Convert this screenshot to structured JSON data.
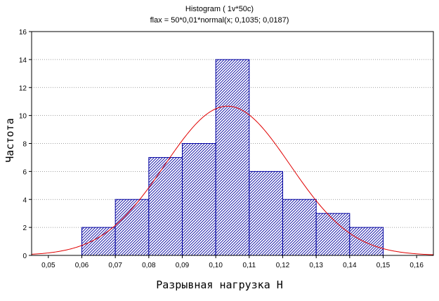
{
  "chart_data": {
    "type": "bar",
    "title": "Histogram ( 1v*50c)",
    "subtitle": "flax = 50*0,01*normal(x; 0,1035; 0,0187)",
    "xlabel": "Разрывная нагрузка Н",
    "ylabel": "Частота",
    "xlim": [
      0.045,
      0.165
    ],
    "ylim": [
      0,
      16
    ],
    "xticks": [
      0.05,
      0.06,
      0.07,
      0.08,
      0.09,
      0.1,
      0.11,
      0.12,
      0.13,
      0.14,
      0.15,
      0.16
    ],
    "xtick_labels": [
      "0,05",
      "0,06",
      "0,07",
      "0,08",
      "0,09",
      "0,10",
      "0,11",
      "0,12",
      "0,13",
      "0,14",
      "0,15",
      "0,16"
    ],
    "yticks": [
      0,
      2,
      4,
      6,
      8,
      10,
      12,
      14,
      16
    ],
    "ytick_labels": [
      "0",
      "2",
      "4",
      "6",
      "8",
      "10",
      "12",
      "14",
      "16"
    ],
    "bins": [
      {
        "from": 0.06,
        "to": 0.07,
        "count": 2
      },
      {
        "from": 0.07,
        "to": 0.08,
        "count": 4
      },
      {
        "from": 0.08,
        "to": 0.09,
        "count": 7
      },
      {
        "from": 0.09,
        "to": 0.1,
        "count": 8
      },
      {
        "from": 0.1,
        "to": 0.11,
        "count": 14
      },
      {
        "from": 0.11,
        "to": 0.12,
        "count": 6
      },
      {
        "from": 0.12,
        "to": 0.13,
        "count": 4
      },
      {
        "from": 0.13,
        "to": 0.14,
        "count": 3
      },
      {
        "from": 0.14,
        "to": 0.15,
        "count": 2
      }
    ],
    "normal_fit": {
      "n": 50,
      "bin_width": 0.01,
      "mean": 0.1035,
      "sd": 0.0187
    },
    "grid": "horizontal dotted",
    "colors": {
      "bar_stroke": "#0000a0",
      "hatch": "#0000a0",
      "curve": "#e00000",
      "grid": "#808080"
    }
  }
}
